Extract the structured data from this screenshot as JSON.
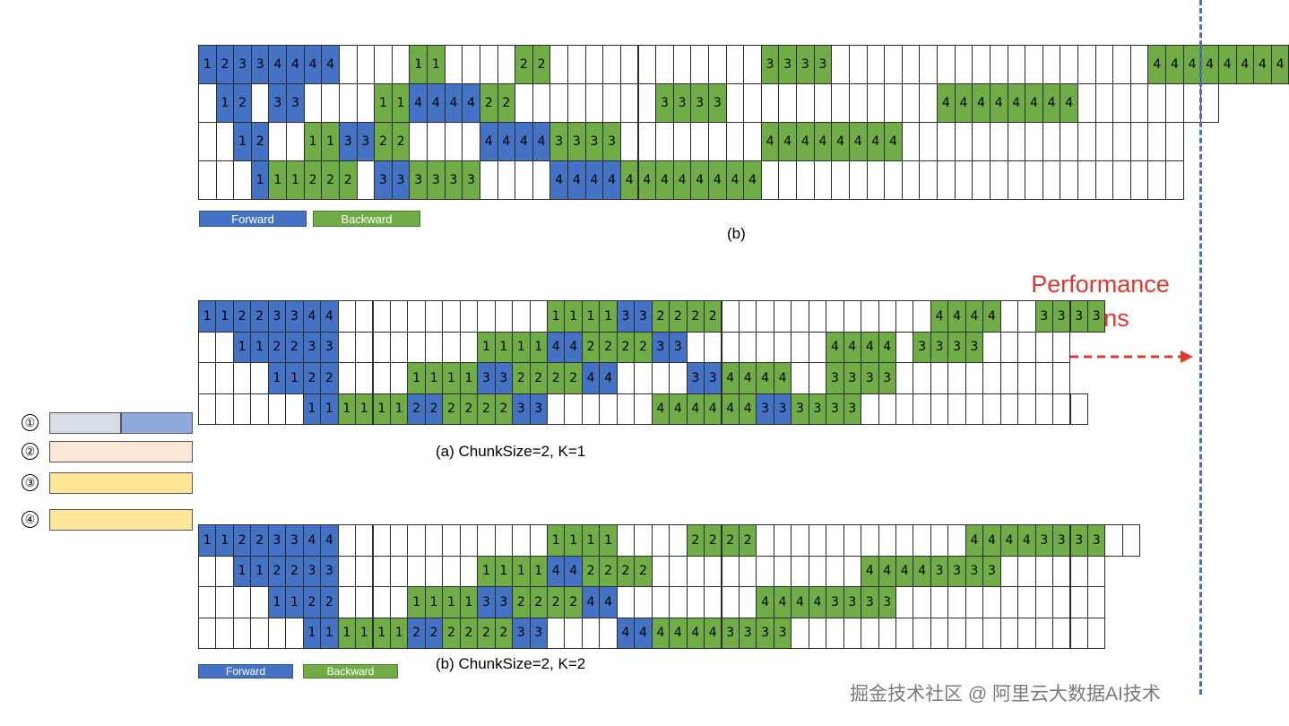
{
  "grids": [
    {
      "id": "top",
      "rows": [
        "F1 F2 F3 F3 F4 F4 F4 F4 . . . . B1 B1 . . . . B2 B2 . . . . . . . . . . . . B3 B3 B3 B3 . . . . . . . . . . . . . . . . . . B4 B4 B4 B4 B4 B4 B4 B4",
        ". F1 F2 . F3 F3 . . . . B1 B1 F4 F4 F4 F4 B2 B2 . . . . . . . . B3 B3 B3 B3 . . . . . . . . . . . . B4 B4 B4 B4 B4 B4 B4 B4 . . . . . . . .",
        ". . F1 F2 . . B1 B1 F3 F3 B2 B2 . . . . F4 F4 F4 F4 B3 B3 B3 B3 . . . . . . . . B4 B4 B4 B4 B4 B4 B4 B4 . . . . . . . . . . . . . . . .",
        ". . . F1 B1 B1 B2 B2 B2 . F3 F3 B3 B3 B3 B3 . . . . F4 F4 F4 F4 B4 B4 B4 B4 B4 B4 B4 B4 . . . . . . . . . . . . . . . . . . . . . . . ."
      ]
    },
    {
      "id": "a",
      "rows": [
        "F1 F1 F2 F2 F3 F3 F4 F4 . . . . . . . . . . . . B1 B1 B1 B1 F3 F3 B2 B2 B2 B2 . . . . . . . . . . . . B4 B4 B4 B4 . . B3 B3 B3 B3",
        ". . F1 F1 F2 F2 F3 F3 . . . . . . . . B1 B1 B1 B1 F4 F4 B2 B2 B2 B2 F3 F3 . . . . . . . . B4 B4 B4 B4 . B3 B3 B3 B3 . . . . .",
        ". . . . F1 F1 F2 F2 . . . . B1 B1 B1 B1 F3 F3 B2 B2 B2 B2 F4 F4 . . . . F3 F3 B4 B4 B4 B4 . . B3 B3 B3 B3 . . . . . . . . . .",
        ". . . . . . F1 F1 B1 B1 B1 B1 F2 F2 B2 B2 B2 B2 F3 F3 . . . . . . B4 B4 B4 B4 B4 B4 F3 F3 B3 B3 B3 B3 . . . . . . . . . . . . ."
      ]
    },
    {
      "id": "b2",
      "rows": [
        "F1 F1 F2 F2 F3 F3 F4 F4 . . . . . . . . . . . . B1 B1 B1 B1 . . . . B2 B2 B2 B2 . . . . . . . . . . . . B4 B4 B4 B4 B3 B3 B3 B3 . .",
        ". . F1 F1 F2 F2 F3 F3 . . . . . . . . B1 B1 B1 B1 F4 F4 B2 B2 B2 B2 . . . . . . . . . . . . B4 B4 B4 B4 B3 B3 B3 B3 . . . . . .",
        ". . . . F1 F1 F2 F2 . . . . B1 B1 B1 B1 F3 F3 B2 B2 B2 B2 F4 F4 . . . . . . . . B4 B4 B4 B4 B3 B3 B3 B3 . . . . . . . . . . . .",
        ". . . . . . F1 F1 B1 B1 B1 B1 F2 F2 B2 B2 B2 B2 F3 F3 . . . . F4 F4 B4 B4 B4 B4 B3 B3 B3 B3 . . . . . . . . . . . . . . . . . ."
      ]
    }
  ],
  "legend_top": {
    "forward": "Forward",
    "backward": "Backward"
  },
  "legend_bottom": {
    "forward": "Forward",
    "backward": "Backward"
  },
  "captions": {
    "top": "(b)",
    "a": "(a) ChunkSize=2, K=1",
    "b": "(b) ChunkSize=2, K=2"
  },
  "performance": {
    "line1": "Performance",
    "line2": "gains"
  },
  "side_legend": [
    "①",
    "②",
    "③",
    "④"
  ],
  "colors": {
    "forward": "#4472c4",
    "backward": "#70ad47",
    "arrow": "#e0382f",
    "dashed_line": "#4a6fbf"
  },
  "watermark": "掘金技术社区 @ 阿里云大数据AI技术"
}
